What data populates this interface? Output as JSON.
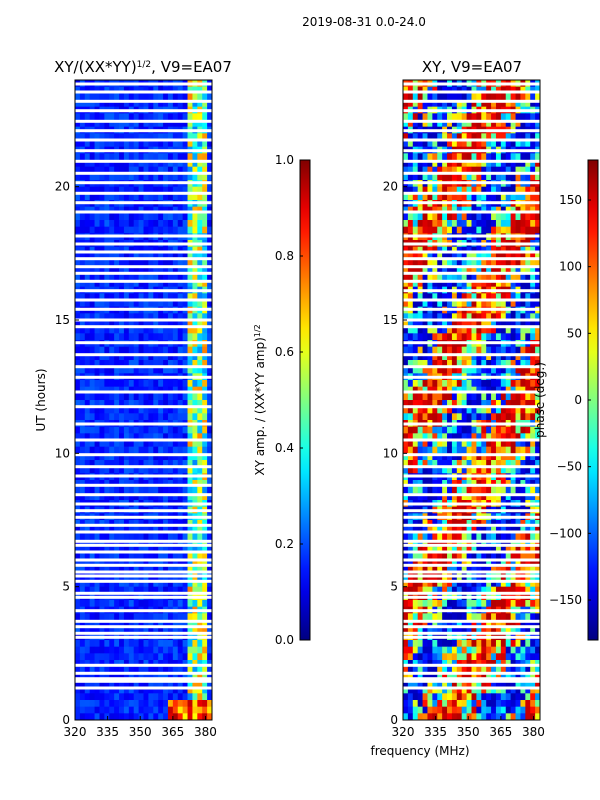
{
  "suptitle": "2019-08-31 0.0-24.0",
  "shared_xlabel": "frequency (MHz)",
  "chart_data": [
    {
      "type": "heatmap",
      "title": "XY/(XX*YY)",
      "title_sup": "1/2",
      "title_suffix": ", V9=EA07",
      "ylabel": "UT (hours)",
      "xlabel": "frequency (MHz)",
      "xlim": [
        320,
        383
      ],
      "ylim": [
        0,
        24
      ],
      "xticks": [
        320,
        335,
        350,
        365,
        380
      ],
      "yticks": [
        0,
        5,
        10,
        15,
        20
      ],
      "colormap": "jet",
      "colorbar": {
        "label": "XY amp. / (XX*YY amp)",
        "label_sup": "1/2",
        "range": [
          0.0,
          1.0
        ],
        "ticks": [
          "0.0",
          "0.2",
          "0.4",
          "0.6",
          "0.8",
          "1.0"
        ]
      },
      "gap_hours": [
        1.2,
        1.45,
        1.55,
        1.75,
        2.05,
        3.1,
        3.25,
        3.5,
        3.7,
        4.1,
        4.6,
        4.75,
        5.2,
        5.4,
        5.55,
        5.8,
        6.0,
        6.3,
        6.55,
        6.7,
        7.05,
        7.3,
        7.6,
        7.85,
        8.1,
        8.45,
        8.8,
        9.15,
        9.5,
        9.95,
        10.5,
        11.1,
        11.75,
        12.3,
        12.85,
        13.25,
        13.7,
        14.15,
        14.75,
        15.0,
        15.4,
        15.75,
        16.1,
        16.45,
        16.75,
        17.0,
        17.3,
        17.55,
        17.85,
        18.15,
        19.05,
        19.4,
        19.75,
        20.15,
        20.5,
        20.95,
        21.35,
        21.75,
        22.1,
        22.45,
        22.85,
        23.2,
        23.55,
        23.85
      ]
    },
    {
      "type": "heatmap",
      "title": "XY, V9=EA07",
      "ylabel": "",
      "xlabel": "frequency (MHz)",
      "xlim": [
        320,
        383
      ],
      "ylim": [
        0,
        24
      ],
      "xticks": [
        320,
        335,
        350,
        365,
        380
      ],
      "yticks": [
        0,
        5,
        10,
        15,
        20
      ],
      "colormap": "jet",
      "colorbar": {
        "label": "phase (deg.)",
        "range": [
          -180,
          180
        ],
        "ticks": [
          "−150",
          "−100",
          "−50",
          "0",
          "50",
          "100",
          "150"
        ],
        "tick_values": [
          -150,
          -100,
          -50,
          0,
          50,
          100,
          150
        ]
      },
      "gap_hours": [
        1.2,
        1.45,
        1.55,
        1.75,
        2.05,
        3.1,
        3.25,
        3.5,
        3.7,
        4.1,
        4.6,
        4.75,
        5.2,
        5.4,
        5.55,
        5.8,
        6.0,
        6.3,
        6.55,
        6.7,
        7.05,
        7.3,
        7.6,
        7.85,
        8.1,
        8.45,
        8.8,
        9.15,
        9.5,
        9.95,
        10.5,
        11.1,
        11.75,
        12.3,
        12.85,
        13.25,
        13.7,
        14.15,
        14.75,
        15.0,
        15.4,
        15.75,
        16.1,
        16.45,
        16.75,
        17.0,
        17.3,
        17.55,
        17.85,
        18.15,
        19.05,
        19.4,
        19.75,
        20.15,
        20.5,
        20.95,
        21.35,
        21.75,
        22.1,
        22.45,
        22.85,
        23.2,
        23.55,
        23.85
      ]
    }
  ]
}
